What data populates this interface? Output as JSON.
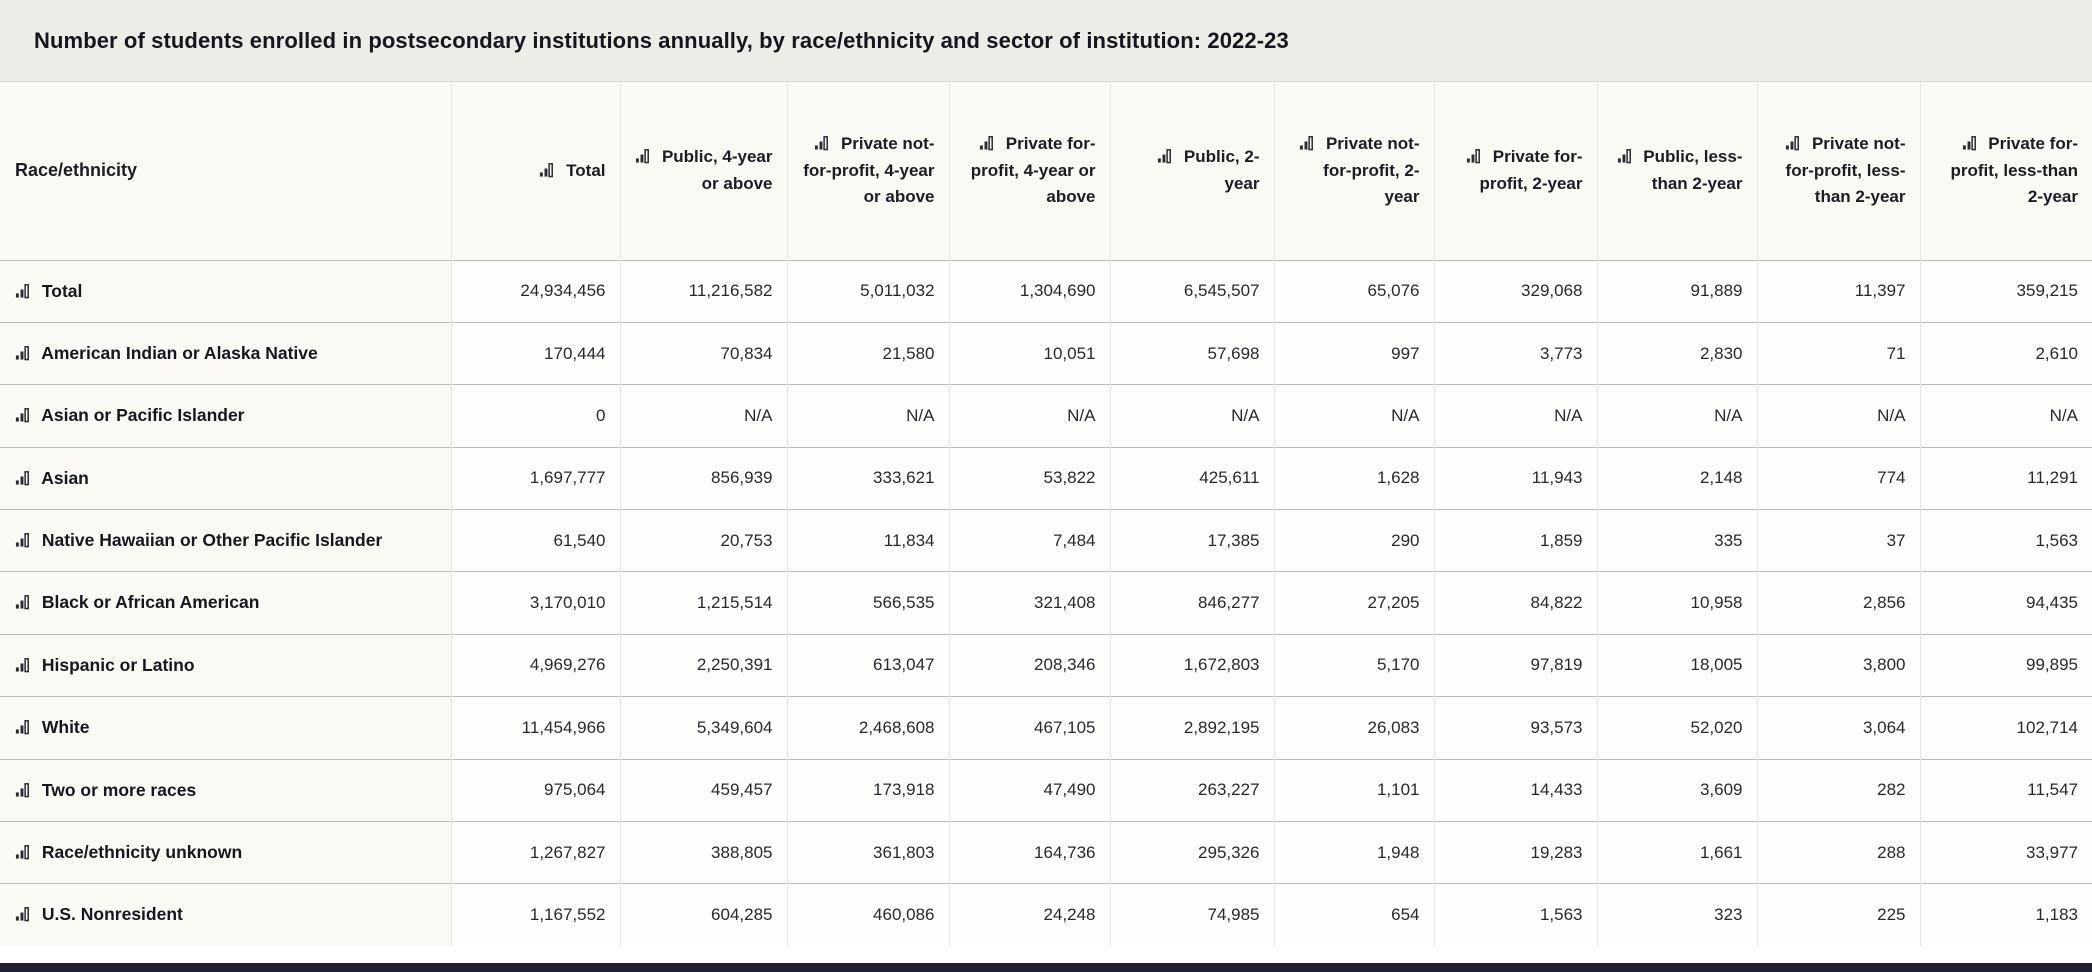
{
  "title": "Number of students enrolled in postsecondary institutions annually, by race/ethnicity and sector of institution: 2022-23",
  "colors": {
    "title_bar_bg": "#edece6",
    "header_cell_bg": "#faf9f3",
    "numeric_cell_bg": "#fefefc",
    "row_border": "#bcbbb6",
    "column_border": "#e7e6e0",
    "text": "#1e1f26",
    "bottom_bar": "#202134"
  },
  "icons": {
    "bar_chart": "bar-chart-icon"
  },
  "table": {
    "row_header_label": "Race/ethnicity",
    "columns": [
      "Total",
      "Public, 4-year or above",
      "Private not-for-profit, 4-year or above",
      "Private for-profit, 4-year or above",
      "Public, 2-year",
      "Private not-for-profit, 2-year",
      "Private for-profit, 2-year",
      "Public, less-than 2-year",
      "Private not-for-profit, less-than 2-year",
      "Private for-profit, less-than 2-year"
    ],
    "rows": [
      {
        "label": "Total",
        "values": [
          "24,934,456",
          "11,216,582",
          "5,011,032",
          "1,304,690",
          "6,545,507",
          "65,076",
          "329,068",
          "91,889",
          "11,397",
          "359,215"
        ]
      },
      {
        "label": "American Indian or Alaska Native",
        "values": [
          "170,444",
          "70,834",
          "21,580",
          "10,051",
          "57,698",
          "997",
          "3,773",
          "2,830",
          "71",
          "2,610"
        ]
      },
      {
        "label": "Asian or Pacific Islander",
        "values": [
          "0",
          "N/A",
          "N/A",
          "N/A",
          "N/A",
          "N/A",
          "N/A",
          "N/A",
          "N/A",
          "N/A"
        ]
      },
      {
        "label": "Asian",
        "values": [
          "1,697,777",
          "856,939",
          "333,621",
          "53,822",
          "425,611",
          "1,628",
          "11,943",
          "2,148",
          "774",
          "11,291"
        ]
      },
      {
        "label": "Native Hawaiian or Other Pacific Islander",
        "values": [
          "61,540",
          "20,753",
          "11,834",
          "7,484",
          "17,385",
          "290",
          "1,859",
          "335",
          "37",
          "1,563"
        ]
      },
      {
        "label": "Black or African American",
        "values": [
          "3,170,010",
          "1,215,514",
          "566,535",
          "321,408",
          "846,277",
          "27,205",
          "84,822",
          "10,958",
          "2,856",
          "94,435"
        ]
      },
      {
        "label": "Hispanic or Latino",
        "values": [
          "4,969,276",
          "2,250,391",
          "613,047",
          "208,346",
          "1,672,803",
          "5,170",
          "97,819",
          "18,005",
          "3,800",
          "99,895"
        ]
      },
      {
        "label": "White",
        "values": [
          "11,454,966",
          "5,349,604",
          "2,468,608",
          "467,105",
          "2,892,195",
          "26,083",
          "93,573",
          "52,020",
          "3,064",
          "102,714"
        ]
      },
      {
        "label": "Two or more races",
        "values": [
          "975,064",
          "459,457",
          "173,918",
          "47,490",
          "263,227",
          "1,101",
          "14,433",
          "3,609",
          "282",
          "11,547"
        ]
      },
      {
        "label": "Race/ethnicity unknown",
        "values": [
          "1,267,827",
          "388,805",
          "361,803",
          "164,736",
          "295,326",
          "1,948",
          "19,283",
          "1,661",
          "288",
          "33,977"
        ]
      },
      {
        "label": "U.S. Nonresident",
        "values": [
          "1,167,552",
          "604,285",
          "460,086",
          "24,248",
          "74,985",
          "654",
          "1,563",
          "323",
          "225",
          "1,183"
        ]
      }
    ]
  },
  "chart_data": {
    "type": "table",
    "title": "Number of students enrolled in postsecondary institutions annually, by race/ethnicity and sector of institution: 2022-23",
    "row_dimension": "Race/ethnicity",
    "columns": [
      "Total",
      "Public, 4-year or above",
      "Private not-for-profit, 4-year or above",
      "Private for-profit, 4-year or above",
      "Public, 2-year",
      "Private not-for-profit, 2-year",
      "Private for-profit, 2-year",
      "Public, less-than 2-year",
      "Private not-for-profit, less-than 2-year",
      "Private for-profit, less-than 2-year"
    ],
    "rows": [
      {
        "label": "Total",
        "values": [
          24934456,
          11216582,
          5011032,
          1304690,
          6545507,
          65076,
          329068,
          91889,
          11397,
          359215
        ]
      },
      {
        "label": "American Indian or Alaska Native",
        "values": [
          170444,
          70834,
          21580,
          10051,
          57698,
          997,
          3773,
          2830,
          71,
          2610
        ]
      },
      {
        "label": "Asian or Pacific Islander",
        "values": [
          0,
          "N/A",
          "N/A",
          "N/A",
          "N/A",
          "N/A",
          "N/A",
          "N/A",
          "N/A",
          "N/A"
        ]
      },
      {
        "label": "Asian",
        "values": [
          1697777,
          856939,
          333621,
          53822,
          425611,
          1628,
          11943,
          2148,
          774,
          11291
        ]
      },
      {
        "label": "Native Hawaiian or Other Pacific Islander",
        "values": [
          61540,
          20753,
          11834,
          7484,
          17385,
          290,
          1859,
          335,
          37,
          1563
        ]
      },
      {
        "label": "Black or African American",
        "values": [
          3170010,
          1215514,
          566535,
          321408,
          846277,
          27205,
          84822,
          10958,
          2856,
          94435
        ]
      },
      {
        "label": "Hispanic or Latino",
        "values": [
          4969276,
          2250391,
          613047,
          208346,
          1672803,
          5170,
          97819,
          18005,
          3800,
          99895
        ]
      },
      {
        "label": "White",
        "values": [
          11454966,
          5349604,
          2468608,
          467105,
          2892195,
          26083,
          93573,
          52020,
          3064,
          102714
        ]
      },
      {
        "label": "Two or more races",
        "values": [
          975064,
          459457,
          173918,
          47490,
          263227,
          1101,
          14433,
          3609,
          282,
          11547
        ]
      },
      {
        "label": "Race/ethnicity unknown",
        "values": [
          1267827,
          388805,
          361803,
          164736,
          295326,
          1948,
          19283,
          1661,
          288,
          33977
        ]
      },
      {
        "label": "U.S. Nonresident",
        "values": [
          1167552,
          604285,
          460086,
          24248,
          74985,
          654,
          1563,
          323,
          225,
          1183
        ]
      }
    ]
  }
}
